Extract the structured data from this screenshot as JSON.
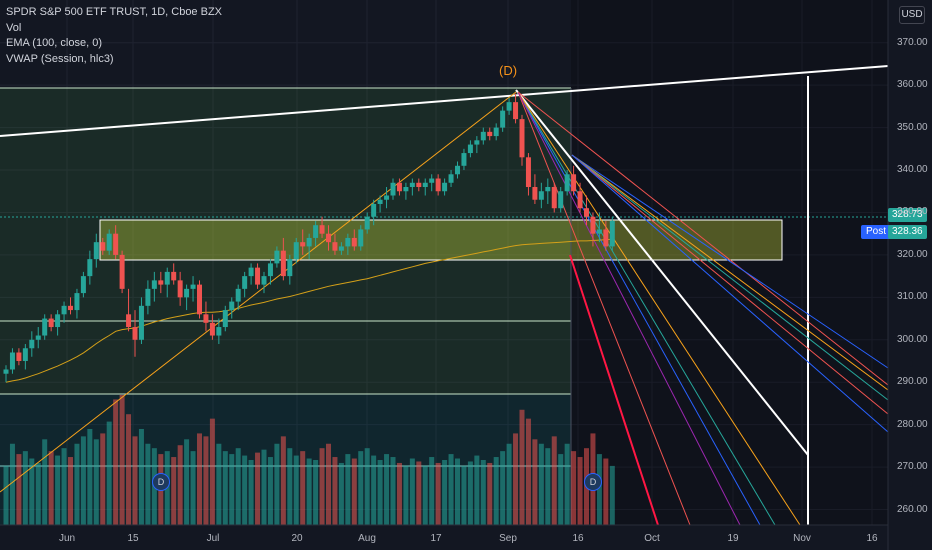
{
  "legend": {
    "symbol": "SPDR S&P 500 ETF TRUST, 1D, Cboe BZX",
    "vol": "Vol",
    "ema": "EMA (100, close, 0)",
    "vwap": "VWAP (Session, hlc3)"
  },
  "currency": "USD",
  "pattern_label": "(D)",
  "dividend_marker": "D",
  "price_badges": [
    {
      "text": "328.73",
      "color": "#26a69a"
    },
    {
      "text": "328.36",
      "color": "#26a69a"
    }
  ],
  "post_label": "Post",
  "chart_data": {
    "type": "candlestick",
    "y_ticks": [
      "370.00",
      "360.00",
      "350.00",
      "340.00",
      "330.00",
      "320.00",
      "310.00",
      "300.00",
      "290.00",
      "280.00",
      "270.00",
      "260.00"
    ],
    "x_ticks": [
      "Jun",
      "15",
      "Jul",
      "20",
      "Aug",
      "17",
      "Sep",
      "16",
      "Oct",
      "19",
      "Nov",
      "16"
    ],
    "ylim": [
      258,
      373
    ],
    "colors": {
      "up": "#26a69a",
      "down": "#ef5350"
    },
    "candles": [
      [
        292,
        294,
        290,
        293
      ],
      [
        293,
        298,
        292,
        297
      ],
      [
        297,
        298,
        294,
        295
      ],
      [
        295,
        299,
        293,
        298
      ],
      [
        298,
        302,
        296,
        300
      ],
      [
        300,
        303,
        298,
        301
      ],
      [
        301,
        306,
        300,
        305
      ],
      [
        305,
        306,
        302,
        303
      ],
      [
        303,
        307,
        301,
        306
      ],
      [
        306,
        309,
        304,
        308
      ],
      [
        308,
        310,
        306,
        307
      ],
      [
        307,
        312,
        305,
        311
      ],
      [
        311,
        316,
        310,
        315
      ],
      [
        315,
        321,
        313,
        319
      ],
      [
        319,
        325,
        317,
        323
      ],
      [
        323,
        324,
        320,
        321
      ],
      [
        321,
        326,
        320,
        325
      ],
      [
        325,
        327,
        319,
        320
      ],
      [
        320,
        321,
        311,
        312
      ],
      [
        306,
        312,
        302,
        303
      ],
      [
        303,
        307,
        296,
        300
      ],
      [
        300,
        310,
        299,
        308
      ],
      [
        308,
        314,
        306,
        312
      ],
      [
        312,
        316,
        309,
        314
      ],
      [
        314,
        316,
        311,
        313
      ],
      [
        313,
        317,
        310,
        316
      ],
      [
        316,
        318,
        313,
        314
      ],
      [
        314,
        316,
        308,
        310
      ],
      [
        310,
        313,
        307,
        312
      ],
      [
        312,
        315,
        309,
        313
      ],
      [
        313,
        314,
        305,
        306
      ],
      [
        306,
        309,
        302,
        304
      ],
      [
        304,
        306,
        300,
        301
      ],
      [
        301,
        305,
        299,
        303
      ],
      [
        303,
        308,
        302,
        307
      ],
      [
        307,
        310,
        305,
        309
      ],
      [
        309,
        313,
        307,
        312
      ],
      [
        312,
        316,
        310,
        315
      ],
      [
        315,
        318,
        313,
        317
      ],
      [
        317,
        318,
        312,
        313
      ],
      [
        313,
        316,
        311,
        315
      ],
      [
        315,
        319,
        313,
        318
      ],
      [
        318,
        322,
        317,
        321
      ],
      [
        321,
        324,
        314,
        315
      ],
      [
        315,
        320,
        313,
        319
      ],
      [
        319,
        324,
        318,
        323
      ],
      [
        323,
        326,
        320,
        322
      ],
      [
        322,
        325,
        319,
        324
      ],
      [
        324,
        328,
        322,
        327
      ],
      [
        327,
        329,
        324,
        325
      ],
      [
        325,
        327,
        321,
        323
      ],
      [
        323,
        325,
        320,
        321
      ],
      [
        321,
        323,
        320,
        322
      ],
      [
        322,
        325,
        320,
        324
      ],
      [
        324,
        326,
        321,
        322
      ],
      [
        322,
        327,
        321,
        326
      ],
      [
        326,
        330,
        325,
        329
      ],
      [
        329,
        333,
        327,
        332
      ],
      [
        332,
        334,
        330,
        333
      ],
      [
        333,
        336,
        331,
        334
      ],
      [
        334,
        338,
        333,
        337
      ],
      [
        337,
        338,
        334,
        335
      ],
      [
        335,
        337,
        333,
        336
      ],
      [
        336,
        338,
        334,
        337
      ],
      [
        337,
        338,
        335,
        336
      ],
      [
        336,
        338,
        334,
        337
      ],
      [
        337,
        339,
        335,
        338
      ],
      [
        338,
        339,
        334,
        335
      ],
      [
        335,
        338,
        334,
        337
      ],
      [
        337,
        340,
        336,
        339
      ],
      [
        339,
        342,
        338,
        341
      ],
      [
        341,
        345,
        340,
        344
      ],
      [
        344,
        347,
        343,
        346
      ],
      [
        346,
        348,
        344,
        347
      ],
      [
        347,
        350,
        346,
        349
      ],
      [
        349,
        350,
        347,
        348
      ],
      [
        348,
        351,
        347,
        350
      ],
      [
        350,
        355,
        349,
        354
      ],
      [
        354,
        357,
        353,
        356
      ],
      [
        356,
        358,
        351,
        352
      ],
      [
        352,
        353,
        341,
        343
      ],
      [
        343,
        344,
        334,
        336
      ],
      [
        336,
        339,
        332,
        333
      ],
      [
        333,
        337,
        331,
        335
      ],
      [
        335,
        338,
        332,
        336
      ],
      [
        336,
        337,
        330,
        331
      ],
      [
        331,
        336,
        330,
        335
      ],
      [
        335,
        340,
        334,
        339
      ],
      [
        339,
        341,
        334,
        335
      ],
      [
        335,
        337,
        330,
        331
      ],
      [
        331,
        334,
        327,
        329
      ],
      [
        329,
        330,
        322,
        325
      ],
      [
        325,
        330,
        323,
        326
      ],
      [
        326,
        328,
        321,
        322
      ],
      [
        322,
        329,
        321,
        328
      ]
    ],
    "volumes": [
      40,
      55,
      48,
      50,
      45,
      42,
      58,
      50,
      47,
      52,
      46,
      55,
      60,
      65,
      58,
      62,
      70,
      85,
      88,
      75,
      60,
      65,
      55,
      52,
      48,
      50,
      46,
      54,
      58,
      50,
      62,
      60,
      72,
      55,
      50,
      48,
      52,
      47,
      44,
      49,
      51,
      46,
      55,
      60,
      52,
      47,
      50,
      45,
      44,
      52,
      55,
      46,
      42,
      48,
      45,
      50,
      52,
      47,
      44,
      48,
      46,
      42,
      40,
      45,
      43,
      40,
      46,
      42,
      44,
      48,
      45,
      40,
      43,
      47,
      44,
      42,
      46,
      50,
      55,
      62,
      78,
      72,
      58,
      55,
      52,
      60,
      48,
      55,
      50,
      46,
      52,
      62,
      48,
      45,
      40
    ],
    "ema": [
      290,
      290.3,
      290.6,
      291,
      291.5,
      292,
      292.6,
      293.2,
      293.8,
      294.5,
      295.2,
      296,
      296.9,
      298,
      299.1,
      300.1,
      301,
      302,
      302.4,
      302.6,
      302.8,
      303.2,
      303.7,
      304.2,
      304.6,
      305,
      305.3,
      305.6,
      305.9,
      306.2,
      306.4,
      306.5,
      306.5,
      306.6,
      306.8,
      307.1,
      307.4,
      307.8,
      308.2,
      308.5,
      308.8,
      309.2,
      309.6,
      309.9,
      310.2,
      310.6,
      311,
      311.4,
      311.8,
      312.2,
      312.6,
      312.9,
      313.2,
      313.5,
      313.8,
      314.1,
      314.4,
      314.8,
      315.2,
      315.6,
      316,
      316.4,
      316.8,
      317.2,
      317.6,
      318,
      318.3,
      318.6,
      318.9,
      319.2,
      319.5,
      319.8,
      320.1,
      320.4,
      320.7,
      321,
      321.3,
      321.6,
      321.9,
      322.2,
      322.4,
      322.5,
      322.6,
      322.7,
      322.8,
      322.9,
      323,
      323.1,
      323.2,
      323.3,
      323.3,
      323.4,
      323.5,
      323.6,
      323.7
    ]
  }
}
